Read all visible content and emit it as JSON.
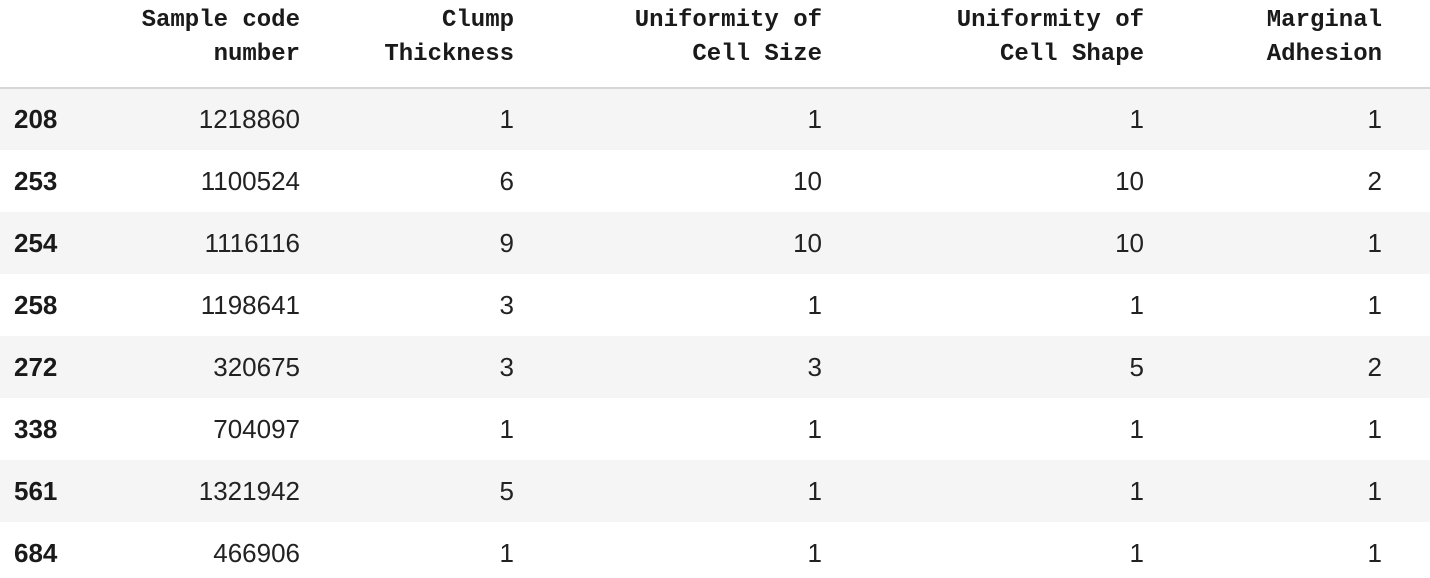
{
  "table": {
    "columns": [
      "",
      "Sample code\nnumber",
      "Clump\nThickness",
      "Uniformity of\nCell Size",
      "Uniformity of\nCell Shape",
      "Marginal\nAdhesion"
    ],
    "rows": [
      {
        "index": "208",
        "cells": [
          "1218860",
          "1",
          "1",
          "1",
          "1"
        ]
      },
      {
        "index": "253",
        "cells": [
          "1100524",
          "6",
          "10",
          "10",
          "2"
        ]
      },
      {
        "index": "254",
        "cells": [
          "1116116",
          "9",
          "10",
          "10",
          "1"
        ]
      },
      {
        "index": "258",
        "cells": [
          "1198641",
          "3",
          "1",
          "1",
          "1"
        ]
      },
      {
        "index": "272",
        "cells": [
          "320675",
          "3",
          "3",
          "5",
          "2"
        ]
      },
      {
        "index": "338",
        "cells": [
          "704097",
          "1",
          "1",
          "1",
          "1"
        ]
      },
      {
        "index": "561",
        "cells": [
          "1321942",
          "5",
          "1",
          "1",
          "1"
        ]
      },
      {
        "index": "684",
        "cells": [
          "466906",
          "1",
          "1",
          "1",
          "1"
        ]
      }
    ]
  }
}
